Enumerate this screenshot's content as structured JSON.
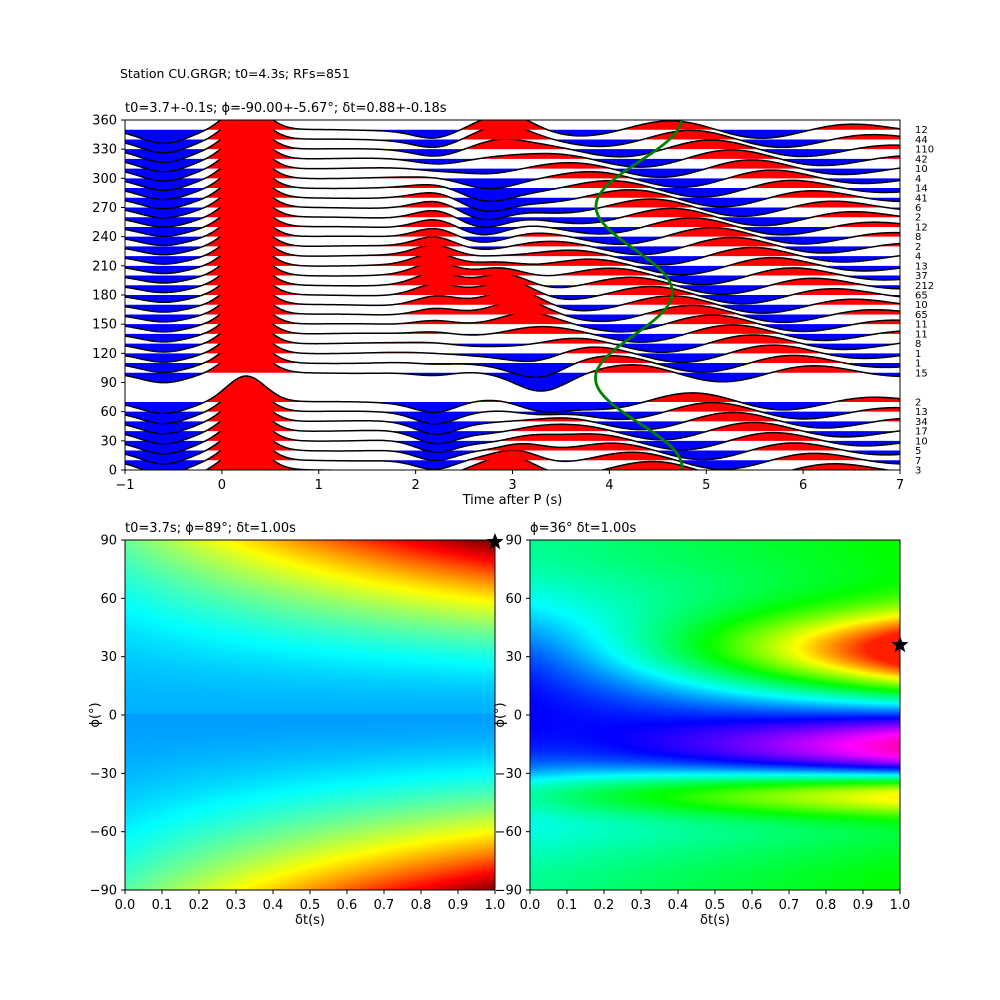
{
  "figure_title": "Station CU.GRGR; t0=4.3s; RFs=851",
  "colors": {
    "positive_fill": "#ff0000",
    "negative_fill": "#0000ff",
    "trace_line": "#000000",
    "model_curve": "#008000"
  },
  "chart_data": [
    {
      "type": "line",
      "subtype": "receiver-function wiggle plot (back-azimuth gather)",
      "title": "t0=3.7+-0.1s; ϕ=-90.00+-5.67°; δt=0.88+-0.18s",
      "xlabel": "Time after P (s)",
      "ylabel": "",
      "xlim": [
        -1,
        7
      ],
      "ylim": [
        0,
        360
      ],
      "xticks": [
        -1,
        0,
        1,
        2,
        3,
        4,
        5,
        6,
        7
      ],
      "yticks": [
        0,
        30,
        60,
        90,
        120,
        150,
        180,
        210,
        240,
        270,
        300,
        330,
        360
      ],
      "legend": "none",
      "grid": false,
      "bins": [
        {
          "baz": 0,
          "count": 3
        },
        {
          "baz": 10,
          "count": 7
        },
        {
          "baz": 20,
          "count": 5
        },
        {
          "baz": 30,
          "count": 10
        },
        {
          "baz": 40,
          "count": 17
        },
        {
          "baz": 50,
          "count": 34
        },
        {
          "baz": 60,
          "count": 13
        },
        {
          "baz": 70,
          "count": 2
        },
        {
          "baz": 100,
          "count": 15
        },
        {
          "baz": 110,
          "count": 1
        },
        {
          "baz": 120,
          "count": 1
        },
        {
          "baz": 130,
          "count": 8
        },
        {
          "baz": 140,
          "count": 11
        },
        {
          "baz": 150,
          "count": 11
        },
        {
          "baz": 160,
          "count": 65
        },
        {
          "baz": 170,
          "count": 10
        },
        {
          "baz": 180,
          "count": 65
        },
        {
          "baz": 190,
          "count": 212
        },
        {
          "baz": 200,
          "count": 37
        },
        {
          "baz": 210,
          "count": 13
        },
        {
          "baz": 220,
          "count": 4
        },
        {
          "baz": 230,
          "count": 2
        },
        {
          "baz": 240,
          "count": 8
        },
        {
          "baz": 250,
          "count": 12
        },
        {
          "baz": 260,
          "count": 2
        },
        {
          "baz": 270,
          "count": 6
        },
        {
          "baz": 280,
          "count": 41
        },
        {
          "baz": 290,
          "count": 14
        },
        {
          "baz": 300,
          "count": 4
        },
        {
          "baz": 310,
          "count": 10
        },
        {
          "baz": 320,
          "count": 42
        },
        {
          "baz": 330,
          "count": 110
        },
        {
          "baz": 340,
          "count": 44
        },
        {
          "baz": 350,
          "count": 12
        }
      ],
      "model_curve": {
        "description": "predicted Ps arrival vs back-azimuth",
        "baz": [
          0,
          30,
          60,
          90,
          120,
          150,
          180,
          210,
          240,
          270,
          300,
          330,
          360
        ],
        "time": [
          4.69,
          4.38,
          3.92,
          3.82,
          4.15,
          4.6,
          4.74,
          4.45,
          4.0,
          3.82,
          4.07,
          4.5,
          4.69
        ]
      }
    },
    {
      "type": "heatmap",
      "title": "t0=3.7s; ϕ=89°; δt=1.00s",
      "xlabel": "δt(s)",
      "ylabel": "ϕ(°)",
      "xlim": [
        0.0,
        1.0
      ],
      "ylim": [
        -90,
        90
      ],
      "xticks": [
        0.0,
        0.1,
        0.2,
        0.3,
        0.4,
        0.5,
        0.6,
        0.7,
        0.8,
        0.9,
        1.0
      ],
      "yticks": [
        -90,
        -60,
        -30,
        0,
        30,
        60,
        90
      ],
      "colormap": "jet",
      "best_fit": {
        "dt": 1.0,
        "phi": 89
      }
    },
    {
      "type": "heatmap",
      "title": "ϕ=36° δt=1.00s",
      "xlabel": "δt(s)",
      "ylabel": "ϕ(°)",
      "xlim": [
        0.0,
        1.0
      ],
      "ylim": [
        -90,
        90
      ],
      "xticks": [
        0.0,
        0.1,
        0.2,
        0.3,
        0.4,
        0.5,
        0.6,
        0.7,
        0.8,
        0.9,
        1.0
      ],
      "yticks": [
        -90,
        -60,
        -30,
        0,
        30,
        60,
        90
      ],
      "colormap": "hsv",
      "best_fit": {
        "dt": 1.0,
        "phi": 36
      }
    }
  ]
}
